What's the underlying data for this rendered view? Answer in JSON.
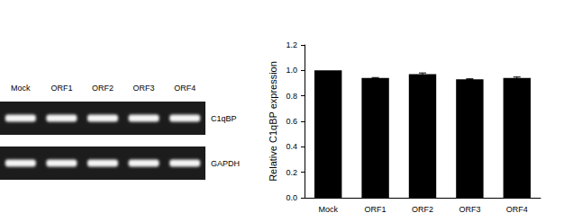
{
  "chart_data": {
    "type": "bar",
    "y_label": "Relative C1qBP expression",
    "categories": [
      "Mock",
      "ORF1",
      "ORF2",
      "ORF3",
      "ORF4"
    ],
    "values": [
      1.0,
      0.94,
      0.97,
      0.93,
      0.94
    ],
    "errors": [
      0,
      0.004,
      0.01,
      0.004,
      0.008
    ],
    "color": "#000000",
    "ylim": [
      0,
      1.2
    ],
    "yticks": [
      {
        "value": 0,
        "label": "0.0"
      },
      0.2,
      0.4,
      0.6,
      0.8,
      {
        "value": 1,
        "label": "1.0"
      },
      1.2
    ],
    "grid": false
  },
  "gel": {
    "lanes": [
      "Mock",
      "ORF1",
      "ORF2",
      "ORF3",
      "ORF4"
    ],
    "bands": [
      "C1qBP",
      "GAPDH"
    ]
  }
}
